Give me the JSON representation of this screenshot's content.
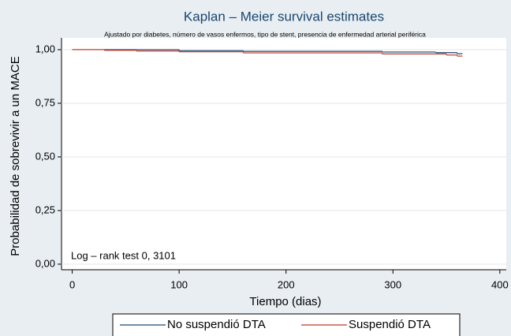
{
  "chart_data": {
    "type": "step",
    "title": "Kaplan – Meier survival estimates",
    "subtitle": "Ajustado por diabetes, número de vasos enfermos, tipo de stent, presencia de enfermedad arterial periférica",
    "x_label": "Tiempo (dias)",
    "y_label": "Probabilidad de sobrevivir a un MACE",
    "annotation": "Log – rank test 0, 3101",
    "xlim": [
      -10,
      406
    ],
    "ylim": [
      -0.026,
      1.055
    ],
    "xticks": [
      0,
      100,
      200,
      300,
      400
    ],
    "yticks": [
      {
        "value": 0,
        "label": "0,00"
      },
      {
        "value": 0.25,
        "label": "0,25"
      },
      {
        "value": 0.5,
        "label": "0,50"
      },
      {
        "value": 0.75,
        "label": "0,75"
      },
      {
        "value": 1,
        "label": "1,00"
      }
    ],
    "grid": true,
    "legend": "bottom",
    "series": [
      {
        "name": "No suspendió DTA",
        "color": "#1a476f",
        "x": [
          0,
          100,
          160,
          290,
          340,
          360,
          365
        ],
        "values": [
          1.0,
          0.995,
          0.992,
          0.989,
          0.986,
          0.981,
          0.981
        ]
      },
      {
        "name": "Suspendió DTA",
        "color": "#c0392b",
        "x": [
          0,
          30,
          60,
          100,
          160,
          290,
          350,
          360,
          365
        ],
        "values": [
          1.0,
          0.997,
          0.994,
          0.99,
          0.985,
          0.98,
          0.975,
          0.97,
          0.97
        ]
      }
    ]
  }
}
